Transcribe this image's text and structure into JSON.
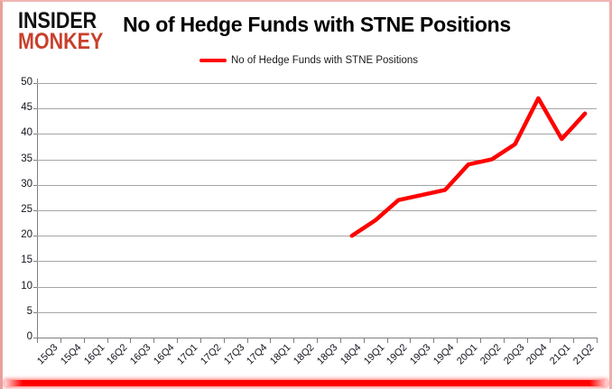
{
  "logo": {
    "line1": "INSIDER",
    "line2": "MONKEY"
  },
  "title": "No of Hedge Funds with STNE Positions",
  "legend": [
    {
      "label": "No of Hedge Funds with STNE Positions",
      "color": "#ff0000"
    }
  ],
  "chart_data": {
    "type": "line",
    "title": "No of Hedge Funds with STNE Positions",
    "categories": [
      "15Q3",
      "15Q4",
      "16Q1",
      "16Q2",
      "16Q3",
      "16Q4",
      "17Q1",
      "17Q2",
      "17Q3",
      "17Q4",
      "18Q1",
      "18Q2",
      "18Q3",
      "18Q4",
      "19Q1",
      "19Q2",
      "19Q3",
      "19Q4",
      "20Q1",
      "20Q2",
      "20Q3",
      "20Q4",
      "21Q1",
      "21Q2"
    ],
    "series": [
      {
        "name": "No of Hedge Funds with STNE Positions",
        "color": "#ff0000",
        "values": [
          null,
          null,
          null,
          null,
          null,
          null,
          null,
          null,
          null,
          null,
          null,
          null,
          null,
          20,
          23,
          27,
          28,
          29,
          34,
          35,
          38,
          47,
          39,
          44
        ]
      }
    ],
    "xlabel": "",
    "ylabel": "",
    "ylim": [
      0,
      50
    ],
    "ytick_step": 5,
    "grid": true,
    "legend_position": "top-center"
  },
  "colors": {
    "line": "#ff0000",
    "gridline": "#a6a6a6",
    "axis": "#7f7f7f",
    "logo_black": "#111111",
    "logo_red": "#c8402c",
    "frame_border": "#e8a09c",
    "bottom_bar": "#ff0000",
    "background": "#ffffff"
  }
}
